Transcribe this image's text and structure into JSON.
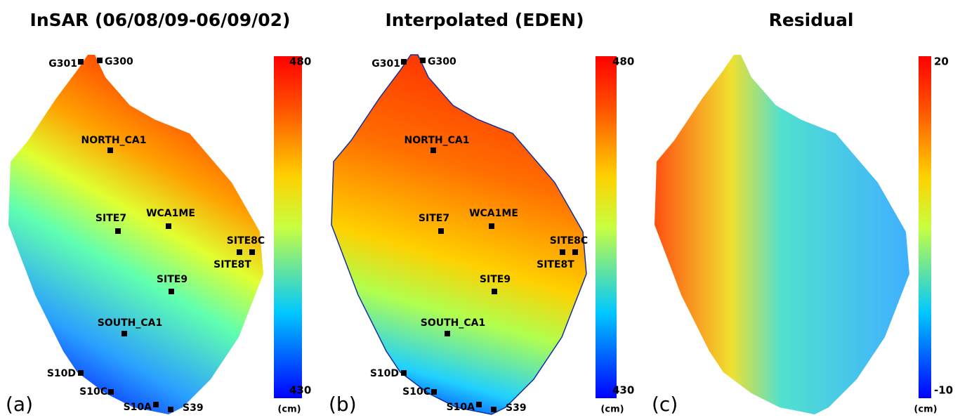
{
  "panels": [
    {
      "title": "InSAR (06/08/09-06/09/02)",
      "label": "(a)",
      "sites": [
        "G301",
        "G300",
        "NORTH_CA1",
        "SITE7",
        "WCA1ME",
        "SITE8C",
        "SITE8T",
        "SITE9",
        "SOUTH_CA1",
        "S10D",
        "S10C",
        "S10A",
        "S39"
      ],
      "colorbar": {
        "max": "480",
        "min": "430",
        "unit": "(cm)"
      }
    },
    {
      "title": "Interpolated (EDEN)",
      "label": "(b)",
      "sites": [
        "G301",
        "G300",
        "NORTH_CA1",
        "SITE7",
        "WCA1ME",
        "SITE8C",
        "SITE8T",
        "SITE9",
        "SOUTH_CA1",
        "S10D",
        "S10C",
        "S10A",
        "S39"
      ],
      "colorbar": {
        "max": "480",
        "min": "430",
        "unit": "(cm)"
      }
    },
    {
      "title": "Residual",
      "label": "(c)",
      "sites": [],
      "colorbar": {
        "max": "20",
        "min": "-10",
        "unit": "(cm)"
      }
    }
  ]
}
